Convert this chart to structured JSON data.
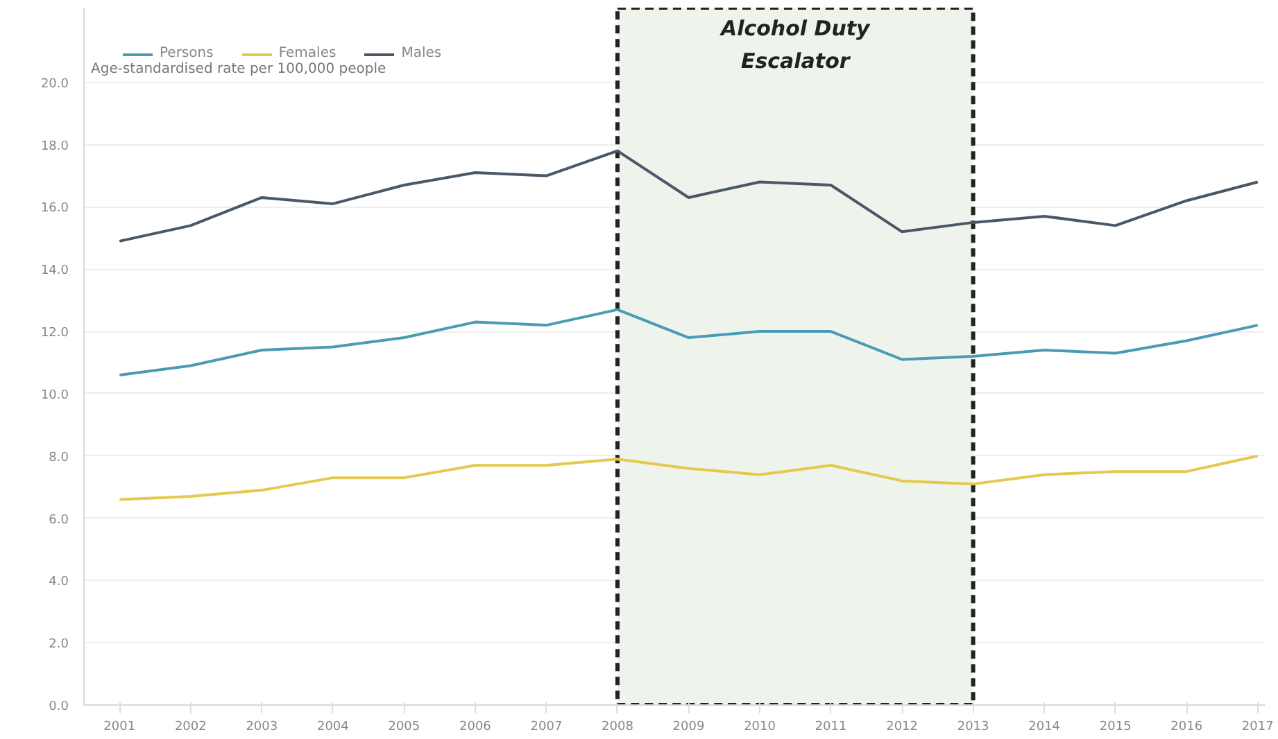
{
  "chart_data": {
    "type": "line",
    "ylabel": "Age-standardised rate per 100,000 people",
    "x": [
      2001,
      2002,
      2003,
      2004,
      2005,
      2006,
      2007,
      2008,
      2009,
      2010,
      2011,
      2012,
      2013,
      2014,
      2015,
      2016,
      2017
    ],
    "series": [
      {
        "name": "Persons",
        "color": "#4a9bb5",
        "values": [
          10.6,
          10.9,
          11.4,
          11.5,
          11.8,
          12.3,
          12.2,
          12.7,
          11.8,
          12.0,
          12.0,
          11.1,
          11.2,
          11.4,
          11.3,
          11.7,
          12.2
        ]
      },
      {
        "name": "Females",
        "color": "#e6c84f",
        "values": [
          6.6,
          6.7,
          6.9,
          7.3,
          7.3,
          7.7,
          7.7,
          7.9,
          7.6,
          7.4,
          7.7,
          7.2,
          7.1,
          7.4,
          7.5,
          7.5,
          8.0
        ]
      },
      {
        "name": "Males",
        "color": "#4a5866",
        "values": [
          14.9,
          15.4,
          16.3,
          16.1,
          16.7,
          17.1,
          17.0,
          17.8,
          16.3,
          16.8,
          16.7,
          15.2,
          15.5,
          15.7,
          15.4,
          16.2,
          16.8
        ]
      }
    ],
    "xlim": [
      2000.5,
      2017.1
    ],
    "ylim": [
      0,
      22.4
    ],
    "xticks": [
      2001,
      2002,
      2003,
      2004,
      2005,
      2006,
      2007,
      2008,
      2009,
      2010,
      2011,
      2012,
      2013,
      2014,
      2015,
      2016,
      2017
    ],
    "yticks": [
      {
        "value": 0,
        "label": "0.0"
      },
      {
        "value": 2,
        "label": "2.0"
      },
      {
        "value": 4,
        "label": "4.0"
      },
      {
        "value": 6,
        "label": "6.0"
      },
      {
        "value": 8,
        "label": "8.0"
      },
      {
        "value": 10,
        "label": "10.0"
      },
      {
        "value": 12,
        "label": "12.0"
      },
      {
        "value": 14,
        "label": "14.0"
      },
      {
        "value": 16,
        "label": "16.0"
      },
      {
        "value": 18,
        "label": "18.0"
      },
      {
        "value": 20,
        "label": "20.0"
      }
    ],
    "bands": [
      {
        "axis": "x",
        "from": 2008,
        "to": 2013,
        "label": "Alcohol Duty\nEscalator",
        "color": "#eef4ec"
      }
    ],
    "grid": "y",
    "legend": "top left",
    "marker": "none",
    "line_style": "solid"
  }
}
